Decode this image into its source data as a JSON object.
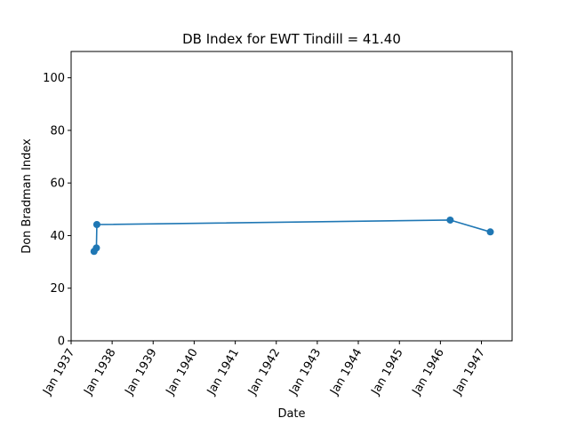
{
  "chart_data": {
    "type": "line",
    "title": "DB Index for EWT Tindill = 41.40",
    "xlabel": "Date",
    "ylabel": "Don Bradman Index",
    "xlim": [
      "1937-01-01",
      "1947-10-01"
    ],
    "ylim": [
      0,
      110
    ],
    "y_ticks": [
      0,
      20,
      40,
      60,
      80,
      100
    ],
    "x_ticks": [
      {
        "date": "1937-01-01",
        "label": "Jan 1937"
      },
      {
        "date": "1938-01-01",
        "label": "Jan 1938"
      },
      {
        "date": "1939-01-01",
        "label": "Jan 1939"
      },
      {
        "date": "1940-01-01",
        "label": "Jan 1940"
      },
      {
        "date": "1941-01-01",
        "label": "Jan 1941"
      },
      {
        "date": "1942-01-01",
        "label": "Jan 1942"
      },
      {
        "date": "1943-01-01",
        "label": "Jan 1943"
      },
      {
        "date": "1944-01-01",
        "label": "Jan 1944"
      },
      {
        "date": "1945-01-01",
        "label": "Jan 1945"
      },
      {
        "date": "1946-01-01",
        "label": "Jan 1946"
      },
      {
        "date": "1947-01-01",
        "label": "Jan 1947"
      }
    ],
    "grid": false,
    "series": [
      {
        "color": "#1f77b4",
        "points": [
          {
            "x": "1937-07-24",
            "y": 34.0
          },
          {
            "x": "1937-08-14",
            "y": 35.3
          },
          {
            "x": "1937-08-18",
            "y": 44.2
          },
          {
            "x": "1946-03-29",
            "y": 45.9
          },
          {
            "x": "1947-03-21",
            "y": 41.4
          }
        ]
      }
    ]
  }
}
